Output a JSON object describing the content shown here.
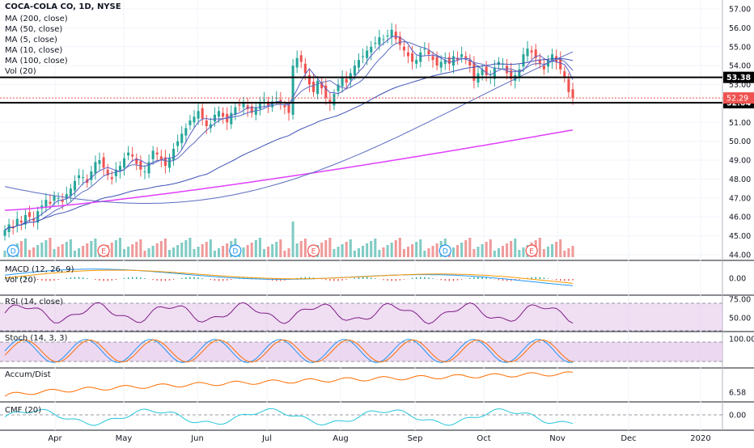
{
  "header": {
    "symbol_line": "COCA-COLA CO, 1D, NYSE",
    "indicators": [
      "MA (200, close)",
      "MA (50, close)",
      "MA (5, close)",
      "MA (10, close)",
      "MA (100, close)",
      "Vol (20)"
    ]
  },
  "panels": {
    "macd_label": "MACD (12, 26, 9)",
    "vol_label": "Vol (20)",
    "rsi_label": "RSI (14, close)",
    "stoch_label": "Stoch (14, 3, 3)",
    "accum_label": "Accum/Dist",
    "cmf_label": "CMF (20)"
  },
  "colors": {
    "up": "#26a69a",
    "down": "#ef5350",
    "ma200": "#e040fb",
    "ma50": "#3f51b5",
    "ma5": "#5b5fc7",
    "ma100": "#5c6bc0",
    "macd": "#2196f3",
    "signal": "#ff9800",
    "rsi": "#7e1f86",
    "stoch_k": "#2196f3",
    "stoch_d": "#ff6d00",
    "accum": "#ff6d00",
    "cmf": "#26c6da",
    "band": "#e1bee7"
  },
  "chart_data": {
    "type": "candlestick",
    "x_labels": [
      "Apr",
      "May",
      "Jun",
      "Jul",
      "Aug",
      "Sep",
      "Oct",
      "Nov",
      "Dec",
      "2020"
    ],
    "price_axis_ticks": [
      57.0,
      56.0,
      55.0,
      54.0,
      53.0,
      52.0,
      51.0,
      50.0,
      49.0,
      48.0,
      47.0,
      46.0,
      45.0,
      44.0
    ],
    "ylim": [
      43.7,
      57.3
    ],
    "horizontal_lines": [
      {
        "label": "53.38",
        "value": 53.38
      },
      {
        "label": "52.04",
        "value": 52.04
      }
    ],
    "last_price": {
      "label": "52.29",
      "value": 52.29
    },
    "candles_close": [
      45.3,
      45.6,
      45.4,
      45.9,
      45.7,
      46.1,
      46.0,
      45.8,
      46.3,
      46.6,
      46.9,
      46.7,
      47.1,
      47.0,
      46.8,
      47.2,
      47.5,
      47.9,
      48.2,
      48.1,
      47.8,
      48.4,
      48.9,
      49.0,
      48.6,
      48.2,
      48.0,
      48.5,
      48.7,
      49.1,
      49.4,
      49.2,
      48.8,
      48.5,
      48.4,
      48.9,
      49.5,
      49.3,
      49.0,
      48.7,
      49.1,
      49.6,
      50.0,
      50.4,
      50.7,
      51.1,
      51.3,
      51.6,
      51.2,
      50.8,
      50.9,
      51.4,
      51.6,
      51.3,
      51.0,
      51.5,
      51.8,
      51.9,
      52.0,
      51.7,
      51.5,
      51.8,
      52.0,
      52.2,
      51.9,
      52.1,
      52.3,
      52.0,
      51.8,
      51.5,
      54.0,
      54.4,
      54.2,
      53.6,
      53.0,
      52.6,
      53.2,
      52.8,
      52.3,
      52.0,
      52.5,
      53.0,
      53.4,
      53.1,
      53.6,
      54.0,
      54.3,
      54.5,
      54.8,
      55.0,
      55.2,
      55.5,
      55.4,
      55.6,
      55.9,
      55.4,
      55.1,
      54.8,
      54.5,
      54.2,
      54.3,
      54.7,
      54.9,
      54.6,
      54.3,
      54.0,
      54.2,
      54.3,
      54.1,
      54.5,
      54.3,
      54.6,
      54.4,
      54.0,
      53.2,
      53.6,
      53.8,
      53.5,
      53.4,
      53.9,
      54.2,
      54.1,
      53.6,
      53.3,
      53.5,
      53.8,
      54.6,
      54.9,
      54.7,
      54.4,
      54.1,
      53.8,
      54.3,
      54.6,
      54.2,
      53.8,
      53.4,
      52.6,
      52.29
    ]
  }
}
